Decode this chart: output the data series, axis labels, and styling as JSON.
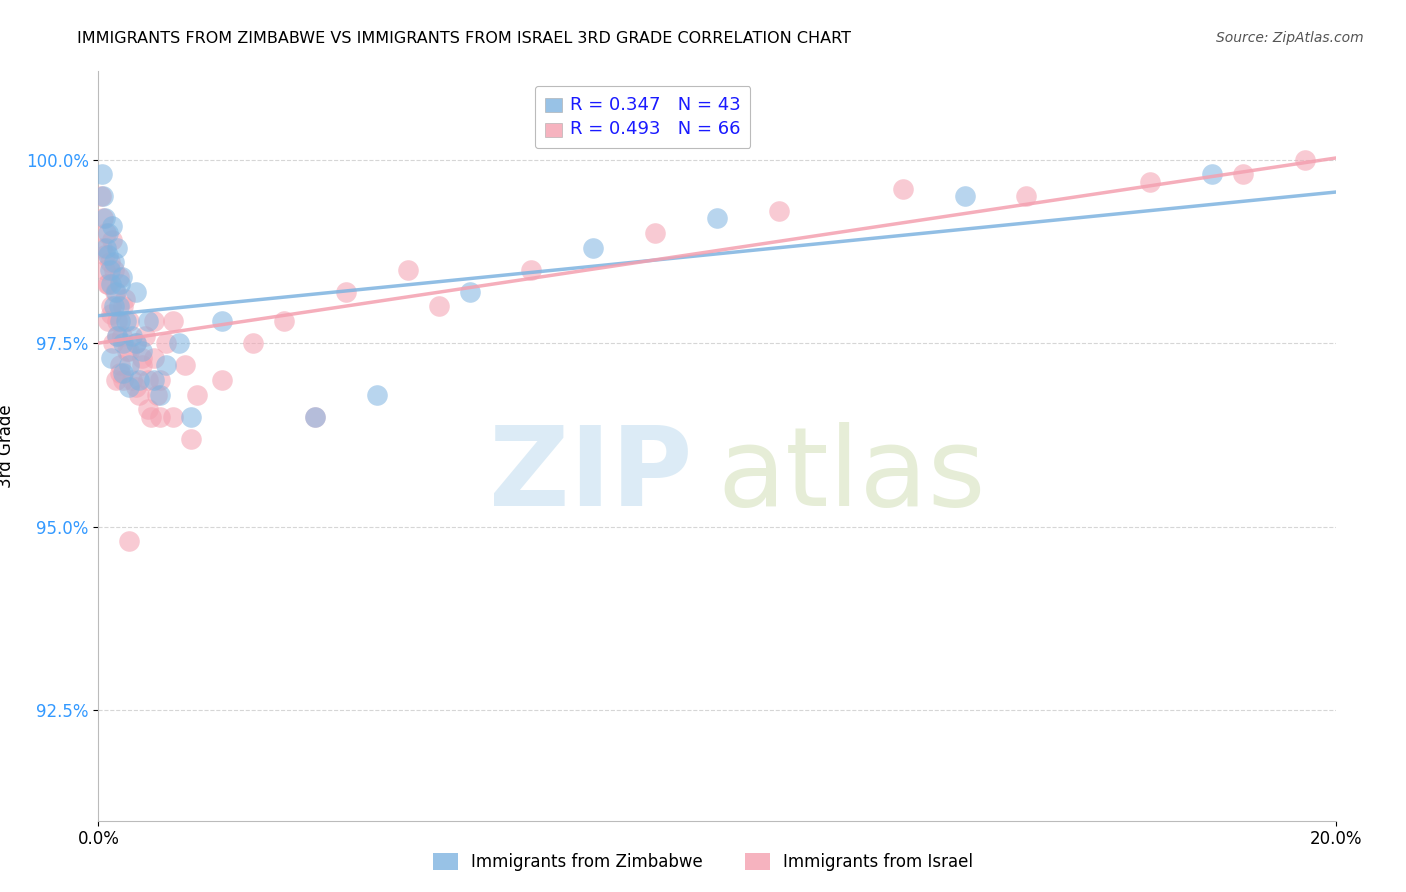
{
  "title": "IMMIGRANTS FROM ZIMBABWE VS IMMIGRANTS FROM ISRAEL 3RD GRADE CORRELATION CHART",
  "source": "Source: ZipAtlas.com",
  "ylabel": "3rd Grade",
  "y_ticks": [
    92.5,
    95.0,
    97.5,
    100.0
  ],
  "y_tick_labels": [
    "92.5%",
    "95.0%",
    "97.5%",
    "100.0%"
  ],
  "xlim": [
    0.0,
    20.0
  ],
  "ylim": [
    91.0,
    101.2
  ],
  "r_zimbabwe": 0.347,
  "n_zimbabwe": 43,
  "r_israel": 0.493,
  "n_israel": 66,
  "color_zimbabwe": "#7EB3E0",
  "color_israel": "#F4A0B0",
  "legend_label_zimbabwe": "Immigrants from Zimbabwe",
  "legend_label_israel": "Immigrants from Israel",
  "zim_x": [
    0.05,
    0.08,
    0.1,
    0.12,
    0.15,
    0.18,
    0.2,
    0.22,
    0.25,
    0.28,
    0.3,
    0.33,
    0.35,
    0.38,
    0.4,
    0.45,
    0.5,
    0.55,
    0.6,
    0.65,
    0.7,
    0.8,
    0.9,
    1.0,
    1.1,
    1.3,
    1.5,
    0.15,
    0.2,
    0.25,
    0.3,
    0.35,
    0.4,
    0.5,
    0.6,
    2.0,
    3.5,
    4.5,
    6.0,
    8.0,
    10.0,
    14.0,
    18.0
  ],
  "zim_y": [
    99.8,
    99.5,
    99.2,
    98.8,
    99.0,
    98.5,
    98.3,
    99.1,
    98.6,
    98.2,
    98.8,
    98.0,
    97.8,
    98.4,
    97.5,
    97.8,
    97.2,
    97.6,
    98.2,
    97.0,
    97.4,
    97.8,
    97.0,
    96.8,
    97.2,
    97.5,
    96.5,
    98.7,
    97.3,
    98.0,
    97.6,
    98.3,
    97.1,
    96.9,
    97.5,
    97.8,
    96.5,
    96.8,
    98.2,
    98.8,
    99.2,
    99.5,
    99.8
  ],
  "isr_x": [
    0.04,
    0.06,
    0.08,
    0.1,
    0.12,
    0.14,
    0.16,
    0.18,
    0.2,
    0.22,
    0.24,
    0.26,
    0.28,
    0.3,
    0.33,
    0.35,
    0.38,
    0.4,
    0.43,
    0.46,
    0.5,
    0.55,
    0.6,
    0.65,
    0.7,
    0.75,
    0.8,
    0.85,
    0.9,
    0.95,
    1.0,
    1.1,
    1.2,
    1.4,
    1.6,
    0.1,
    0.15,
    0.2,
    0.25,
    0.3,
    0.35,
    0.4,
    0.5,
    0.6,
    0.7,
    0.8,
    0.9,
    1.0,
    1.5,
    2.0,
    2.5,
    3.0,
    4.0,
    5.0,
    3.5,
    5.5,
    7.0,
    9.0,
    11.0,
    13.0,
    15.0,
    17.0,
    18.5,
    19.5,
    0.5,
    1.2
  ],
  "isr_y": [
    99.5,
    98.8,
    99.2,
    98.5,
    99.0,
    98.3,
    97.8,
    98.6,
    98.0,
    98.9,
    97.5,
    98.2,
    97.0,
    97.8,
    98.4,
    97.2,
    97.6,
    97.0,
    98.1,
    97.4,
    97.8,
    97.0,
    97.5,
    96.8,
    97.2,
    97.6,
    97.0,
    96.5,
    97.3,
    96.8,
    97.0,
    97.5,
    97.8,
    97.2,
    96.8,
    98.7,
    98.3,
    97.9,
    98.5,
    97.6,
    97.1,
    98.0,
    97.4,
    96.9,
    97.3,
    96.6,
    97.8,
    96.5,
    96.2,
    97.0,
    97.5,
    97.8,
    98.2,
    98.5,
    96.5,
    98.0,
    98.5,
    99.0,
    99.3,
    99.6,
    99.5,
    99.7,
    99.8,
    100.0,
    94.8,
    96.5
  ]
}
